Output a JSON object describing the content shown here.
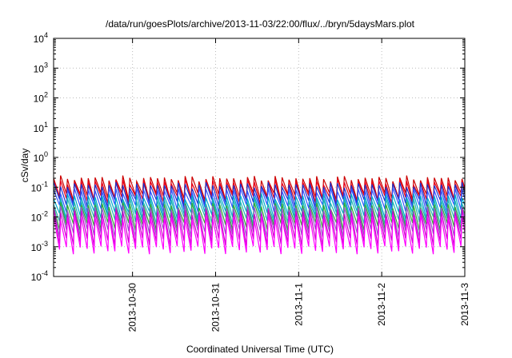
{
  "chart_data": {
    "type": "line",
    "title": "/data/run/goesPlots/archive/2013-11-03/22:00/flux/../bryn/5daysMars.plot",
    "xlabel": "Coordinated Universal Time (UTC)",
    "ylabel": "cSv/day",
    "yscale": "log",
    "ylim": [
      0.0001,
      10000
    ],
    "xlim_days": [
      -0.95,
      4.0
    ],
    "x_ticks": [
      {
        "label": "2013-10-30",
        "day": 0
      },
      {
        "label": "2013-10-31",
        "day": 1
      },
      {
        "label": "2013-11-1",
        "day": 2
      },
      {
        "label": "2013-11-2",
        "day": 3
      },
      {
        "label": "2013-11-3",
        "day": 4
      }
    ],
    "y_ticks": [
      {
        "base": "10",
        "exp": "-4"
      },
      {
        "base": "10",
        "exp": "-3"
      },
      {
        "base": "10",
        "exp": "-2"
      },
      {
        "base": "10",
        "exp": "-1"
      },
      {
        "base": "10",
        "exp": "0"
      },
      {
        "base": "10",
        "exp": "1"
      },
      {
        "base": "10",
        "exp": "2"
      },
      {
        "base": "10",
        "exp": "3"
      },
      {
        "base": "10",
        "exp": "4"
      }
    ],
    "grid": true,
    "oscillation_period_hours": 2,
    "series": [
      {
        "color": "#cc0000",
        "peak": 0.2,
        "trough": 0.05
      },
      {
        "color": "#e8001a",
        "peak": 0.15,
        "trough": 0.04
      },
      {
        "color": "#1a33cc",
        "peak": 0.12,
        "trough": 0.03
      },
      {
        "color": "#3355ff",
        "peak": 0.08,
        "trough": 0.02
      },
      {
        "color": "#00aacc",
        "peak": 0.05,
        "trough": 0.012
      },
      {
        "color": "#1fb3b3",
        "peak": 0.035,
        "trough": 0.008
      },
      {
        "color": "#33aa33",
        "peak": 0.025,
        "trough": 0.005
      },
      {
        "color": "#9955cc",
        "peak": 0.02,
        "trough": 0.003
      },
      {
        "color": "#cc00cc",
        "peak": 0.015,
        "trough": 0.0015
      },
      {
        "color": "#ff00ff",
        "peak": 0.01,
        "trough": 0.0008
      }
    ]
  }
}
